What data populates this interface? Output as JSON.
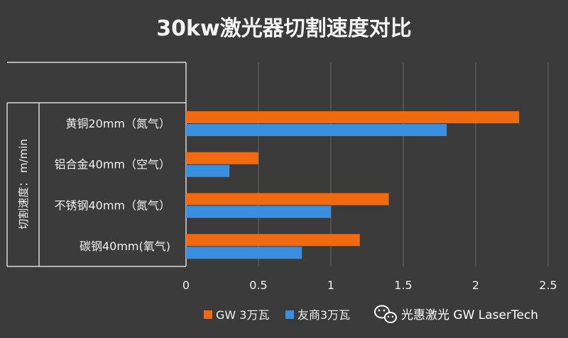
{
  "chart_data": {
    "type": "bar",
    "orientation": "horizontal",
    "title": "30kw激光器切割速度对比",
    "ylabel": "切割速度：  m/min",
    "xlabel": "",
    "categories": [
      "黄铜20mm（氮气）",
      "铝合金40mm（空气）",
      "不锈钢40mm（氮气）",
      "碳钢40mm(氧气)"
    ],
    "series": [
      {
        "name": "GW 3万瓦",
        "values": [
          2.3,
          0.5,
          1.4,
          1.2
        ],
        "color": "#f26a10"
      },
      {
        "name": "友商3万瓦",
        "values": [
          1.8,
          0.3,
          1.0,
          0.8
        ],
        "color": "#3b8fe0"
      }
    ],
    "xlim": [
      0,
      2.5
    ],
    "xticks": [
      "0",
      "0.5",
      "1",
      "1.5",
      "2",
      "2.5"
    ],
    "grid": true,
    "legend_position": "bottom-left"
  },
  "watermark": {
    "icon": "wechat-icon",
    "text": "光惠激光 GW LaserTech"
  }
}
